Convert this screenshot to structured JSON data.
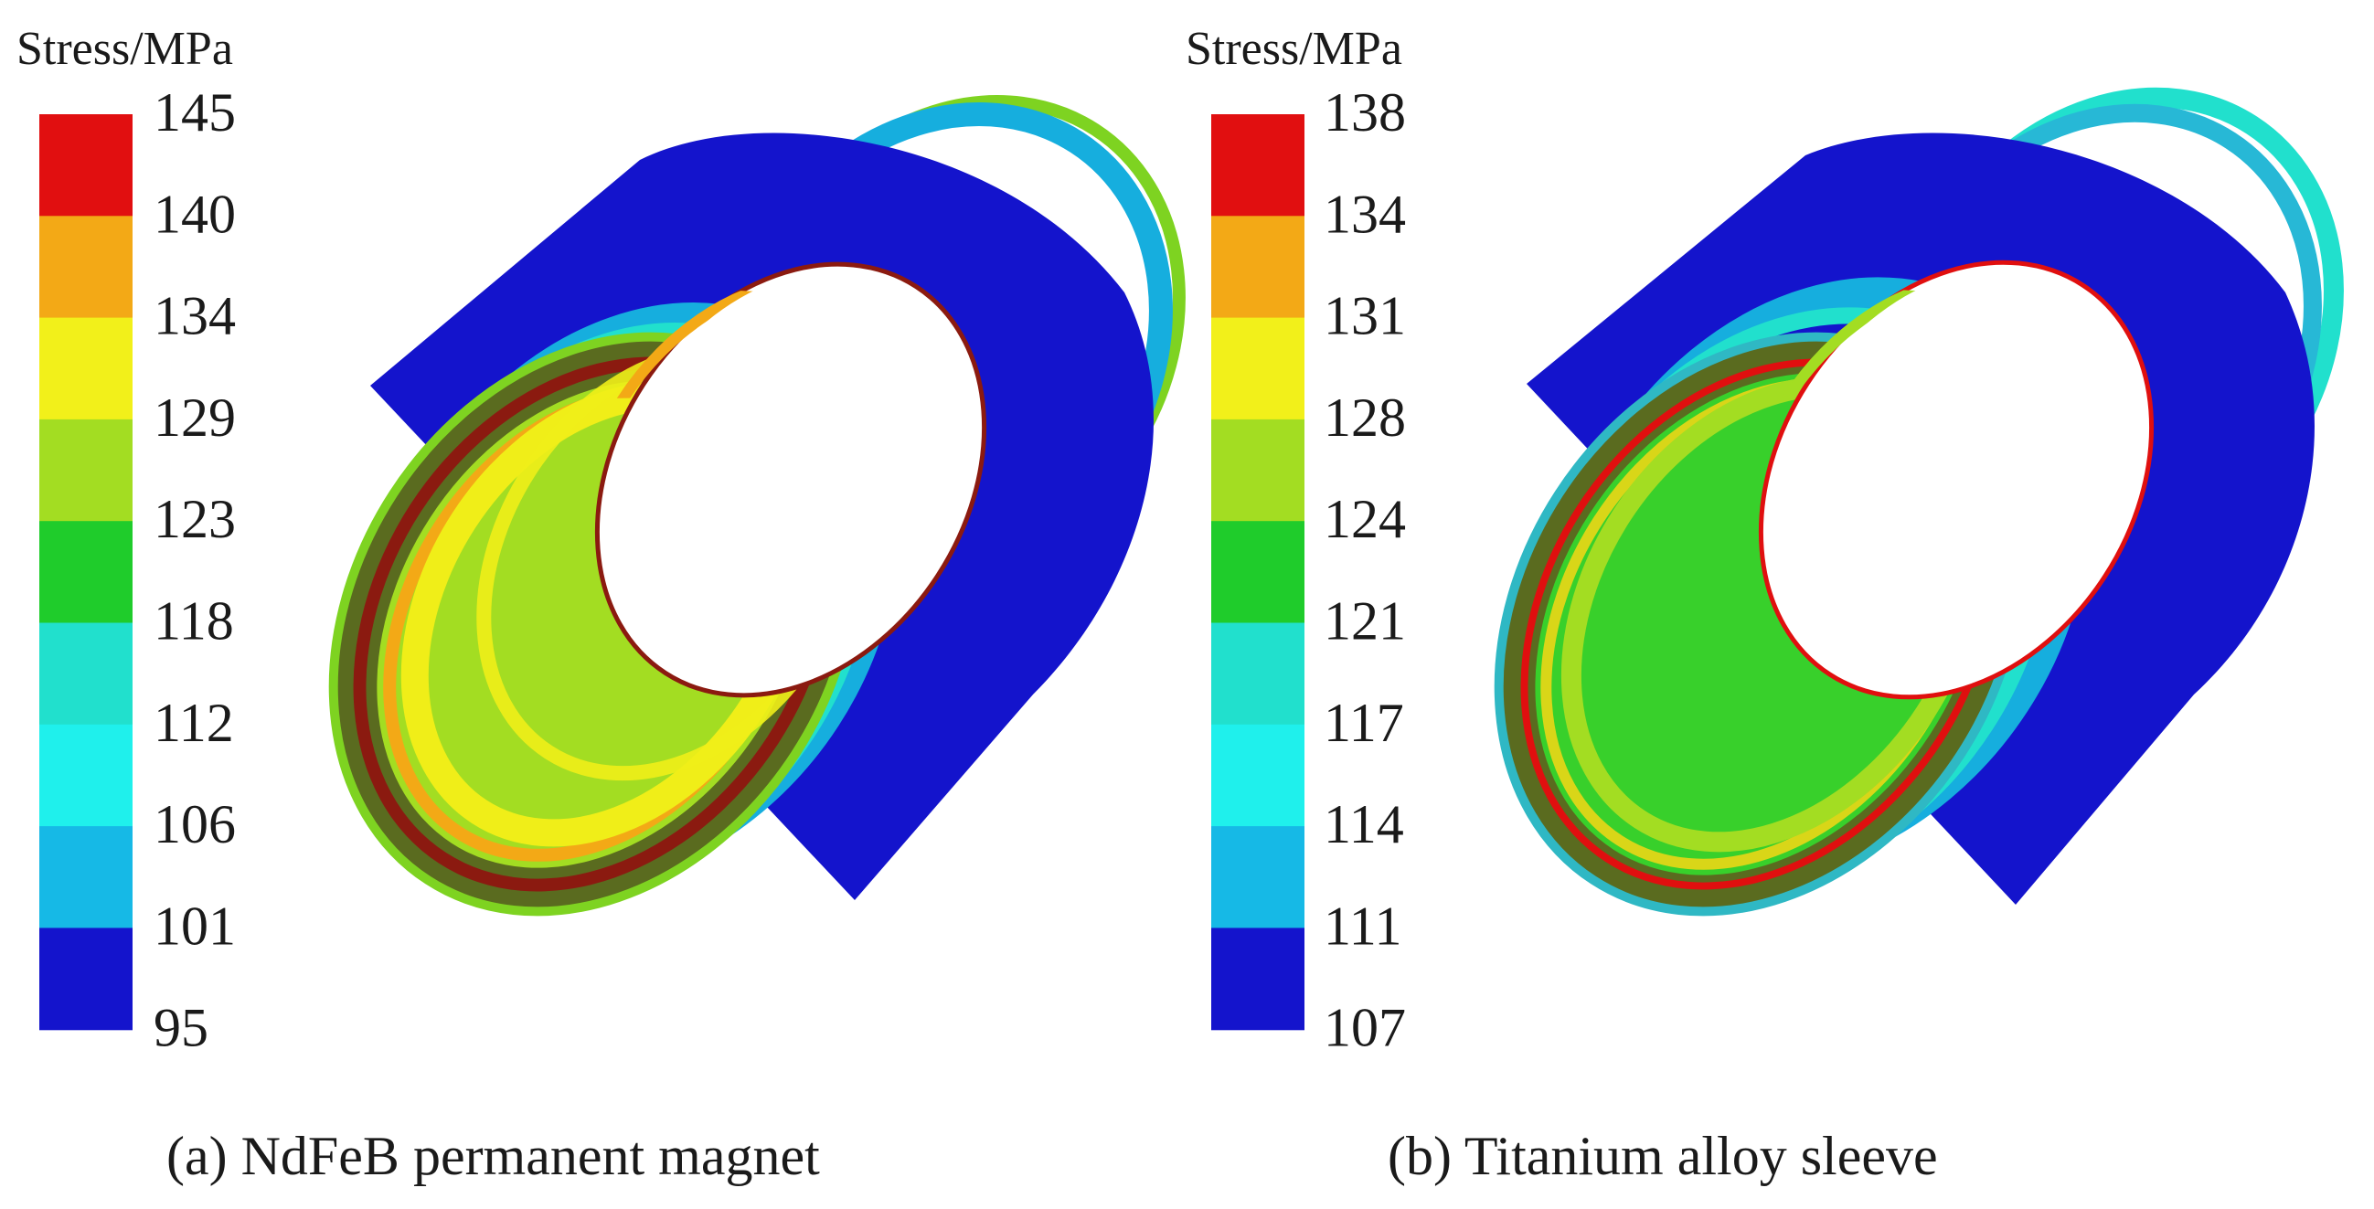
{
  "panels": [
    {
      "legend_title": "Stress/MPa",
      "legend_values": [
        "145",
        "140",
        "134",
        "129",
        "123",
        "118",
        "112",
        "106",
        "101",
        "95"
      ],
      "caption": "(a) NdFeB permanent magnet",
      "object": "NdFeB permanent magnet ring (stress contour)",
      "colors": {
        "outer_main": "#1414cc",
        "outer_bands": [
          "#16aede",
          "#21e0cd",
          "#7ed321"
        ],
        "rim": [
          "#7ed321",
          "#5a6b1f",
          "#8b1a10",
          "#5a6b1f"
        ],
        "inner_main": "#a3dd22",
        "inner_band_light": "#f0ee18",
        "inner_band_dark": "#f3a916"
      }
    },
    {
      "legend_title": "Stress/MPa",
      "legend_values": [
        "138",
        "134",
        "131",
        "128",
        "124",
        "121",
        "117",
        "114",
        "111",
        "107"
      ],
      "caption": "(b) Titanium alloy sleeve",
      "object": "Titanium alloy sleeve ring (stress contour)",
      "colors": {
        "outer_main": "#1414cc",
        "outer_bands": [
          "#16aede",
          "#21e0cd",
          "#27b8d6"
        ],
        "rim": [
          "#2fb8c4",
          "#5a6b1f",
          "#e00f0f",
          "#5a6b1f"
        ],
        "inner_main": "#38d02b",
        "inner_band_light": "#a3dd22",
        "inner_band_dark": "#d9d618"
      }
    }
  ],
  "colorbar": [
    "#e10f10",
    "#f3a916",
    "#f2f01a",
    "#a3dd22",
    "#1fcc2b",
    "#21e0cd",
    "#1ff0ec",
    "#16b9e6",
    "#1414cc"
  ]
}
